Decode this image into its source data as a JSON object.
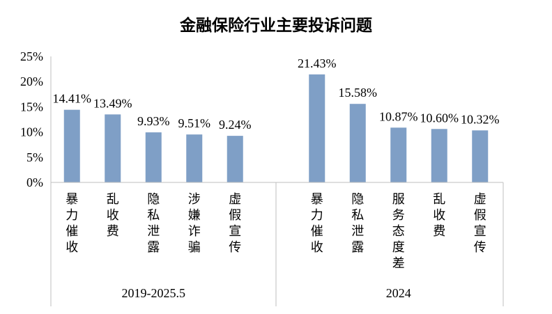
{
  "chart_data": {
    "type": "bar",
    "title": "金融保险行业主要投诉问题",
    "y_ticks": [
      "0%",
      "5%",
      "10%",
      "15%",
      "20%",
      "25%"
    ],
    "ylim": [
      0,
      25
    ],
    "grid": false,
    "legend": "none",
    "bar_color": "#7f9fc6",
    "groups": [
      {
        "name": "2019-2025.5",
        "categories": [
          "暴力催收",
          "乱收费",
          "隐私泄露",
          "涉嫌诈骗",
          "虚假宣传"
        ],
        "values": [
          14.41,
          13.49,
          9.93,
          9.51,
          9.24
        ],
        "labels": [
          "14.41%",
          "13.49%",
          "9.93%",
          "9.51%",
          "9.24%"
        ]
      },
      {
        "name": "2024",
        "categories": [
          "暴力催收",
          "隐私泄露",
          "服务态度差",
          "乱收费",
          "虚假宣传"
        ],
        "values": [
          21.43,
          15.58,
          10.87,
          10.6,
          10.32
        ],
        "labels": [
          "21.43%",
          "15.58%",
          "10.87%",
          "10.60%",
          "10.32%"
        ]
      }
    ]
  }
}
